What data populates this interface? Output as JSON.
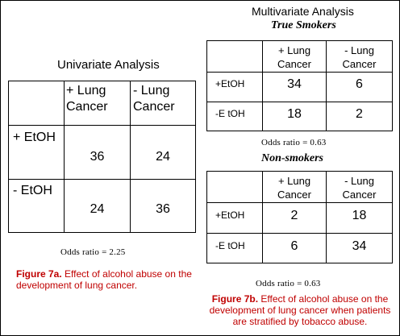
{
  "left": {
    "title": "Univariate Analysis",
    "col_headers": [
      "+ Lung Cancer",
      "- Lung Cancer"
    ],
    "col_lines": [
      [
        "+ Lung",
        "Cancer"
      ],
      [
        "- Lung",
        "Cancer"
      ]
    ],
    "rows": [
      {
        "label": "+ EtOH",
        "values": [
          "36",
          "24"
        ]
      },
      {
        "label": "- EtOH",
        "values": [
          "24",
          "36"
        ]
      }
    ],
    "odds_ratio": "Odds ratio = 2.25",
    "caption_fig": "Figure 7a.",
    "caption_text": " Effect of alcohol abuse on the development of lung cancer."
  },
  "right": {
    "title": "Multivariate Analysis",
    "groups": [
      {
        "name": "True Smokers",
        "col_lines": [
          [
            "+ Lung",
            "Cancer"
          ],
          [
            "- Lung",
            "Cancer"
          ]
        ],
        "rows": [
          {
            "label": "+EtOH",
            "values": [
              "34",
              "6"
            ]
          },
          {
            "label": "-E tOH",
            "values": [
              "18",
              "2"
            ]
          }
        ],
        "odds_ratio": "Odds ratio = 0.63"
      },
      {
        "name": "Non-smokers",
        "col_lines": [
          [
            "+ Lung",
            "Cancer"
          ],
          [
            "- Lung",
            "Cancer"
          ]
        ],
        "rows": [
          {
            "label": "+EtOH",
            "values": [
              "2",
              "18"
            ]
          },
          {
            "label": "-E tOH",
            "values": [
              "6",
              "34"
            ]
          }
        ],
        "odds_ratio": "Odds ratio = 0.63"
      }
    ],
    "caption_fig": "Figure 7b.",
    "caption_text": "  Effect of alcohol abuse on the development of lung cancer when patients are stratified by tobacco abuse."
  },
  "colors": {
    "caption": "#c00000",
    "border": "#000000",
    "background": "#ffffff"
  }
}
